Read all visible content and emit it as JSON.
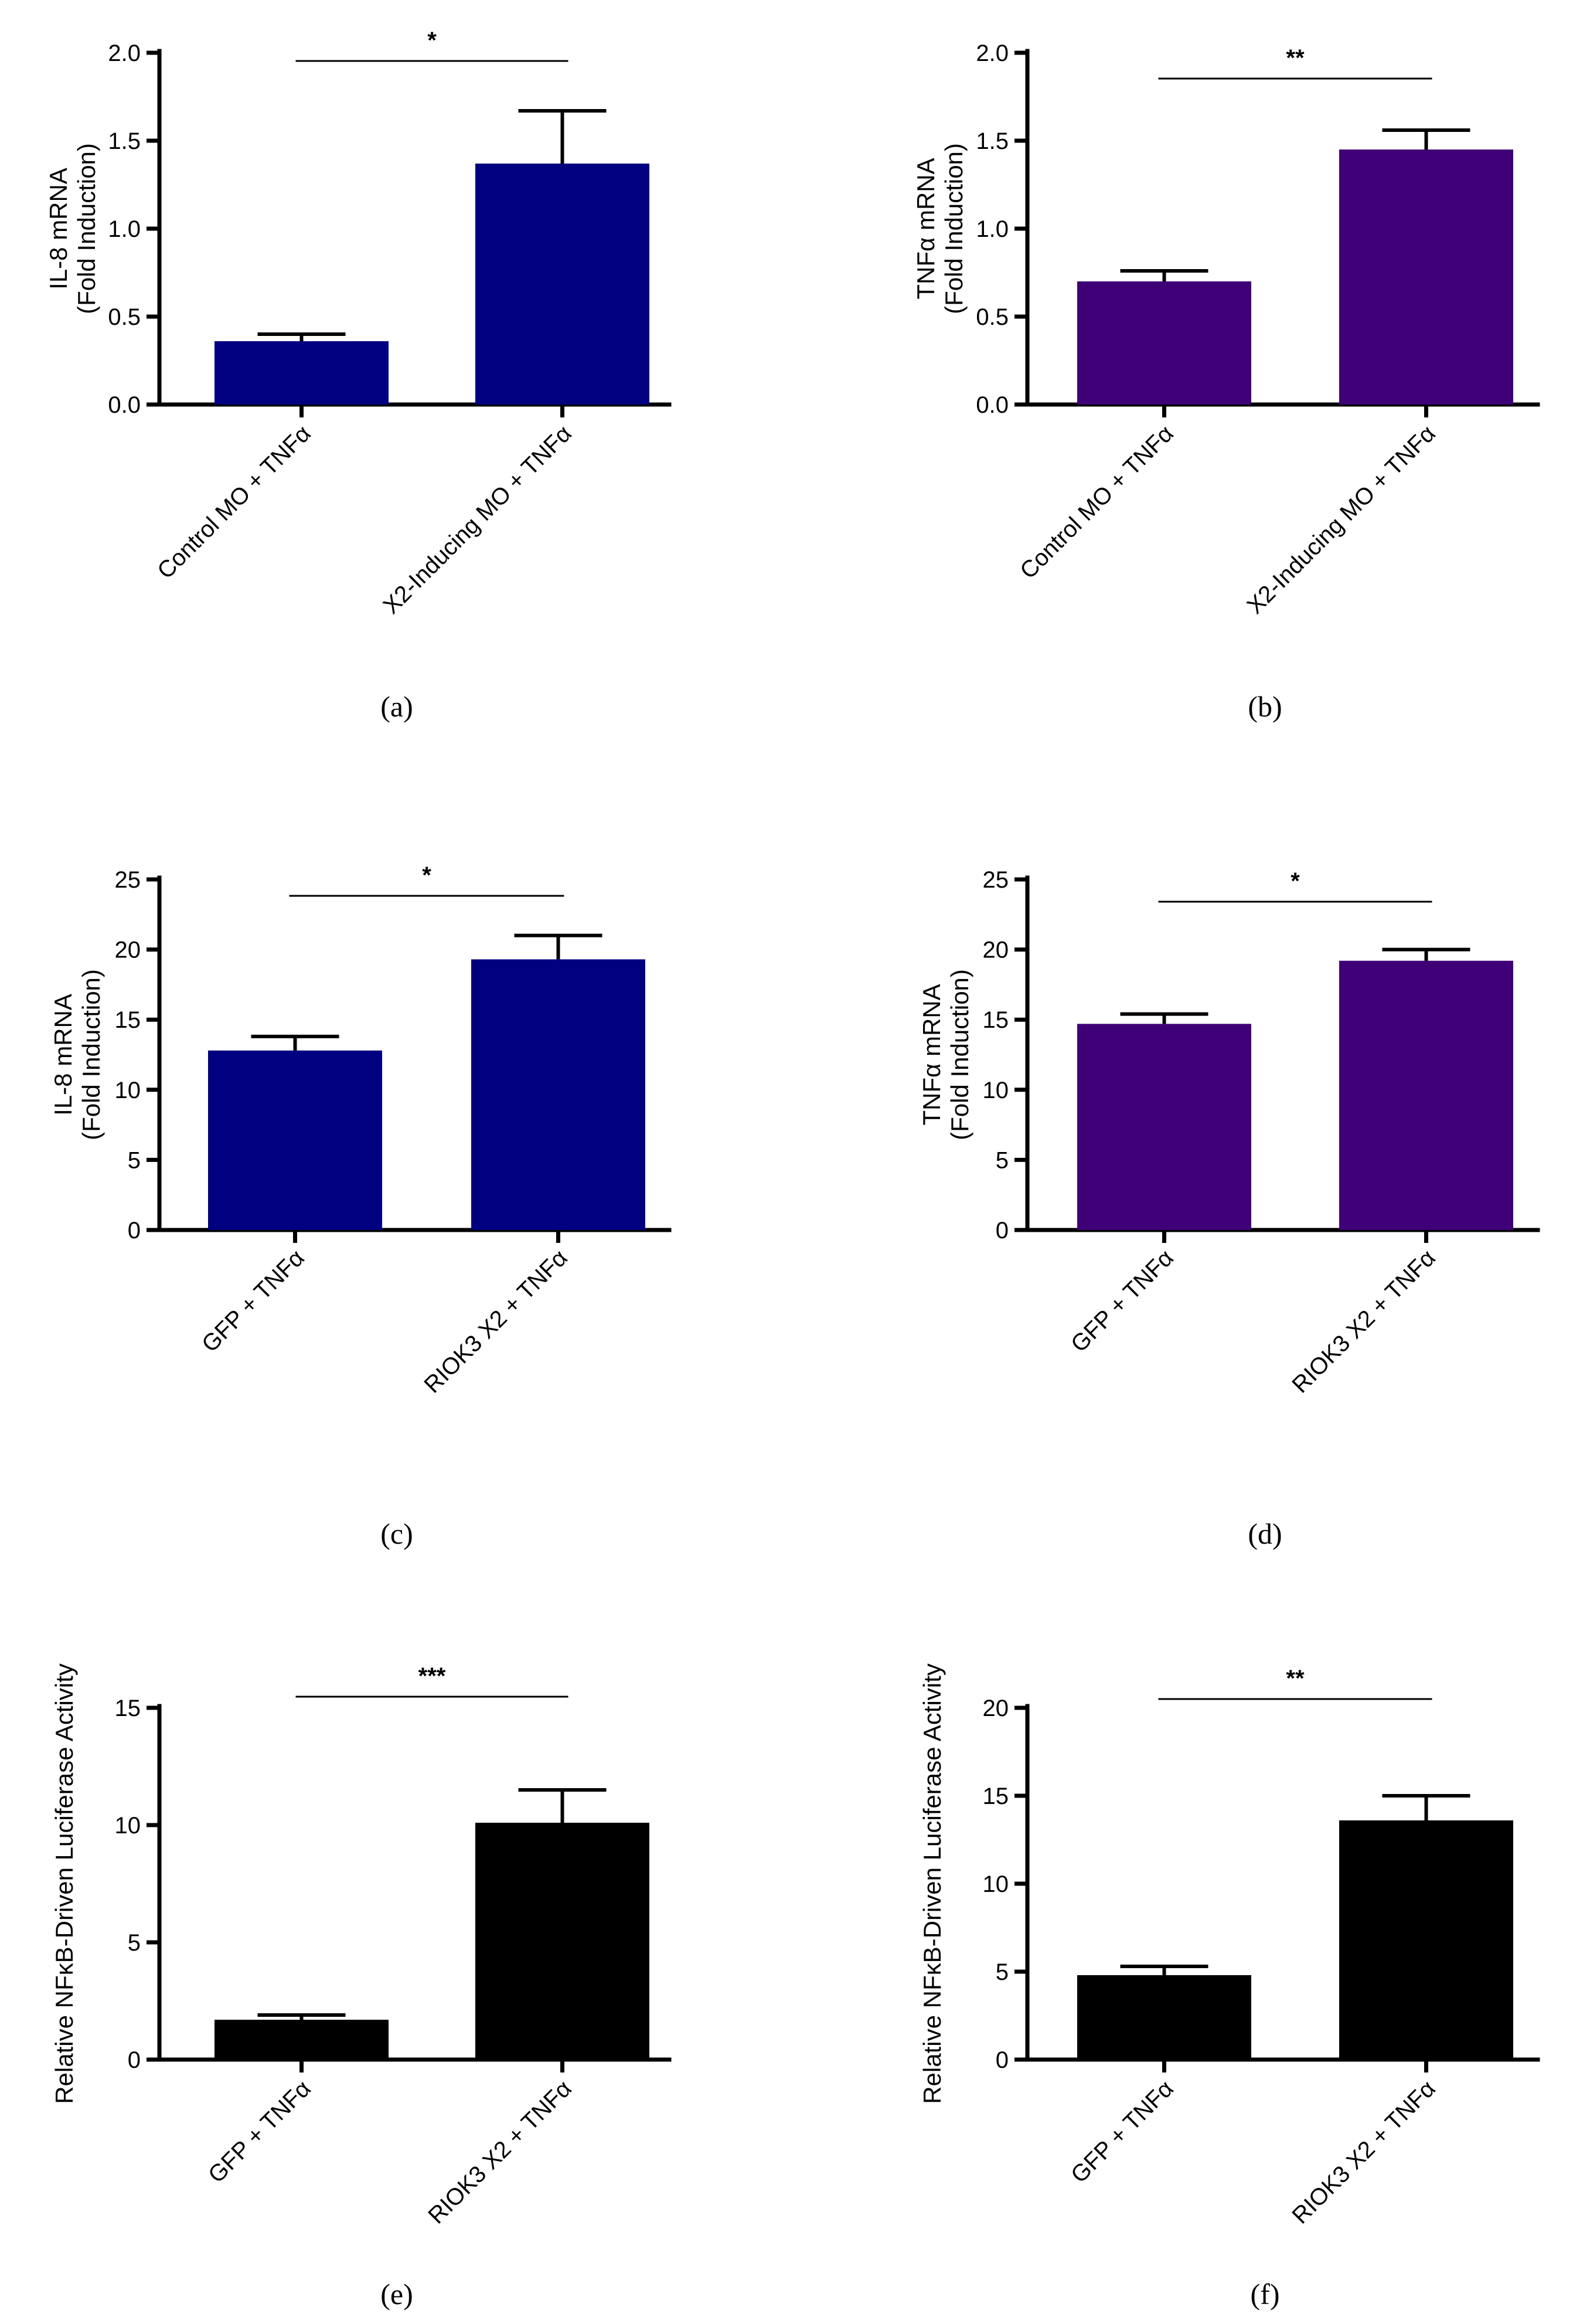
{
  "colors": {
    "navy": "#000080",
    "purple": "#3f0077",
    "black": "#000000"
  },
  "chart_data": [
    {
      "panel": "(a)",
      "type": "bar",
      "ylabel": [
        "IL-8 mRNA",
        "(Fold Induction)"
      ],
      "ylim": [
        0,
        2.0
      ],
      "yticks": [
        "0.0",
        "0.5",
        "1.0",
        "1.5",
        "2.0"
      ],
      "tick_values": [
        0,
        0.5,
        1.0,
        1.5,
        2.0
      ],
      "categories": [
        "Control MO + TNFα",
        "X2-Inducing MO + TNFα"
      ],
      "values": [
        0.36,
        1.37
      ],
      "errors": [
        0.04,
        0.3
      ],
      "significance": "*",
      "color": "#000080"
    },
    {
      "panel": "(b)",
      "type": "bar",
      "ylabel": [
        "TNFα mRNA",
        "(Fold Induction)"
      ],
      "ylim": [
        0,
        2.0
      ],
      "yticks": [
        "0.0",
        "0.5",
        "1.0",
        "1.5",
        "2.0"
      ],
      "tick_values": [
        0,
        0.5,
        1.0,
        1.5,
        2.0
      ],
      "categories": [
        "Control MO + TNFα",
        "X2-Inducing MO + TNFα"
      ],
      "values": [
        0.7,
        1.45
      ],
      "errors": [
        0.06,
        0.11
      ],
      "significance": "**",
      "color": "#3f0077"
    },
    {
      "panel": "(c)",
      "type": "bar",
      "ylabel": [
        "IL-8 mRNA",
        "(Fold Induction)"
      ],
      "ylim": [
        0,
        25
      ],
      "yticks": [
        "0",
        "5",
        "10",
        "15",
        "20",
        "25"
      ],
      "tick_values": [
        0,
        5,
        10,
        15,
        20,
        25
      ],
      "categories": [
        "GFP + TNFα",
        "RIOK3 X2 + TNFα"
      ],
      "values": [
        12.8,
        19.3
      ],
      "errors": [
        1.0,
        1.7
      ],
      "significance": "*",
      "color": "#000080"
    },
    {
      "panel": "(d)",
      "type": "bar",
      "ylabel": [
        "TNFα mRNA",
        "(Fold Induction)"
      ],
      "ylim": [
        0,
        25
      ],
      "yticks": [
        "0",
        "5",
        "10",
        "15",
        "20",
        "25"
      ],
      "tick_values": [
        0,
        5,
        10,
        15,
        20,
        25
      ],
      "categories": [
        "GFP + TNFα",
        "RIOK3 X2 + TNFα"
      ],
      "values": [
        14.7,
        19.2
      ],
      "errors": [
        0.7,
        0.8
      ],
      "significance": "*",
      "color": "#3f0077"
    },
    {
      "panel": "(e)",
      "type": "bar",
      "ylabel": [
        "Relative NFκB-Driven Luciferase Activity"
      ],
      "ylim": [
        0,
        15
      ],
      "yticks": [
        "0",
        "5",
        "10",
        "15"
      ],
      "tick_values": [
        0,
        5,
        10,
        15
      ],
      "categories": [
        "GFP + TNFα",
        "RIOK3 X2 + TNFα"
      ],
      "values": [
        1.7,
        10.1
      ],
      "errors": [
        0.2,
        1.4
      ],
      "significance": "***",
      "color": "#000000"
    },
    {
      "panel": "(f)",
      "type": "bar",
      "ylabel": [
        "Relative NFκB-Driven Luciferase Activity"
      ],
      "ylim": [
        0,
        20
      ],
      "yticks": [
        "0",
        "5",
        "10",
        "15",
        "20"
      ],
      "tick_values": [
        0,
        5,
        10,
        15,
        20
      ],
      "categories": [
        "GFP + TNFα",
        "RIOK3 X2 + TNFα"
      ],
      "values": [
        4.8,
        13.6
      ],
      "errors": [
        0.5,
        1.4
      ],
      "significance": "**",
      "color": "#000000"
    }
  ]
}
